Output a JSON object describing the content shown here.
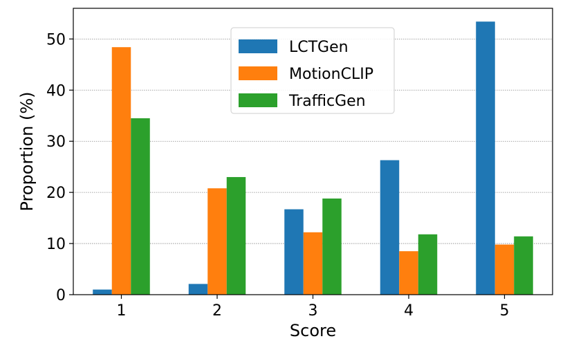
{
  "chart_data": {
    "type": "bar",
    "xlabel": "Score",
    "ylabel": "Proportion (%)",
    "categories": [
      "1",
      "2",
      "3",
      "4",
      "5"
    ],
    "ylim": [
      0,
      56
    ],
    "yticks": [
      0,
      10,
      20,
      30,
      40,
      50
    ],
    "grid": "horizontal dotted",
    "legend_position": "top-center",
    "series": [
      {
        "name": "LCTGen",
        "color": "#1f77b4",
        "values": [
          1.0,
          2.1,
          16.7,
          26.3,
          53.4
        ]
      },
      {
        "name": "MotionCLIP",
        "color": "#ff7f0e",
        "values": [
          48.4,
          20.8,
          12.2,
          8.5,
          9.8
        ]
      },
      {
        "name": "TrafficGen",
        "color": "#2ca02c",
        "values": [
          34.5,
          23.0,
          18.8,
          11.8,
          11.4
        ]
      }
    ]
  }
}
